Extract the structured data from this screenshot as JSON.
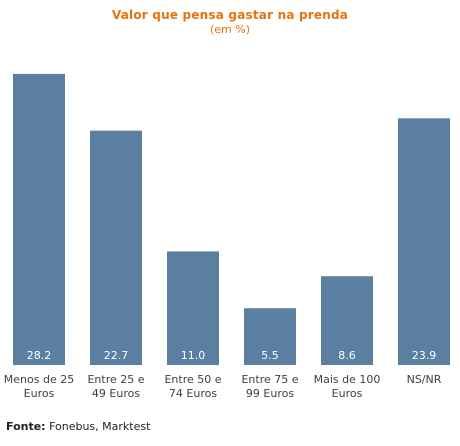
{
  "title": "Valor que pensa gastar na prenda",
  "subtitle": "(em %)",
  "source_label": "Fonte:",
  "source_text": "Fonebus, Marktest",
  "colors": {
    "bar": "#5b7fa0",
    "title": "#e8720f",
    "value_label": "#ffffff",
    "baseline": "#d6d6d6"
  },
  "chart_data": {
    "type": "bar",
    "title": "Valor que pensa gastar na prenda",
    "subtitle": "(em %)",
    "categories": [
      "Menos de 25\nEuros",
      "Entre 25 e\n49 Euros",
      "Entre 50 e\n74 Euros",
      "Entre 75 e\n99 Euros",
      "Mais de 100\nEuros",
      "NS/NR"
    ],
    "values": [
      28.2,
      22.7,
      11.0,
      5.5,
      8.6,
      23.9
    ],
    "value_labels": [
      "28.2",
      "22.7",
      "11.0",
      "5.5",
      "8.6",
      "23.9"
    ],
    "xlabel": "",
    "ylabel": "",
    "ylim": [
      0,
      31
    ],
    "grid": false,
    "legend": "none"
  }
}
